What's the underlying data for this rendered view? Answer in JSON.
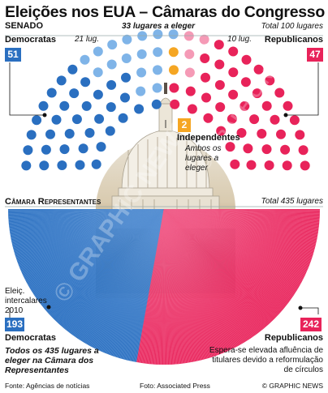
{
  "title": "Eleições nos EUA – Câmaras do Congresso",
  "senate": {
    "section_label": "SENADO",
    "up_for_election": "33 lugares a eleger",
    "total": "Total 100 lugares",
    "dem_label": "Democratas",
    "dem_seats": "51",
    "rep_label": "Republicanos",
    "rep_seats": "47",
    "ind_seats": "2",
    "ind_label": "Independentes",
    "ind_note": "Ambos os lugares a eleger",
    "dem_pct_marker": "21 lug.",
    "rep_pct_marker": "10 lug."
  },
  "house": {
    "section_label": "Câmara Representantes",
    "total": "Total 435 lugares",
    "special_note": "Eleiç. intercalares 2010",
    "dem_seats": "193",
    "dem_label": "Democratas",
    "rep_seats": "242",
    "rep_label": "Republicanos",
    "all_up_note": "Todos os 435 lugares a eleger na Câmara dos Representantes",
    "rep_note": "Espera-se elevada afluência de titulares devido a reformulação de círculos"
  },
  "footer": {
    "source": "Fonte: Agências de notícias",
    "photo": "Foto: Associated Press",
    "credit": "© GRAPHIC NEWS"
  },
  "watermark": "© GRAPHIC NEWS",
  "colors": {
    "democrat": "#2a6fc0",
    "democrat_light": "#7fb4e8",
    "republican": "#e8235a",
    "republican_light": "#f59ab6",
    "independent": "#f5a623",
    "ink": "#111111"
  }
}
